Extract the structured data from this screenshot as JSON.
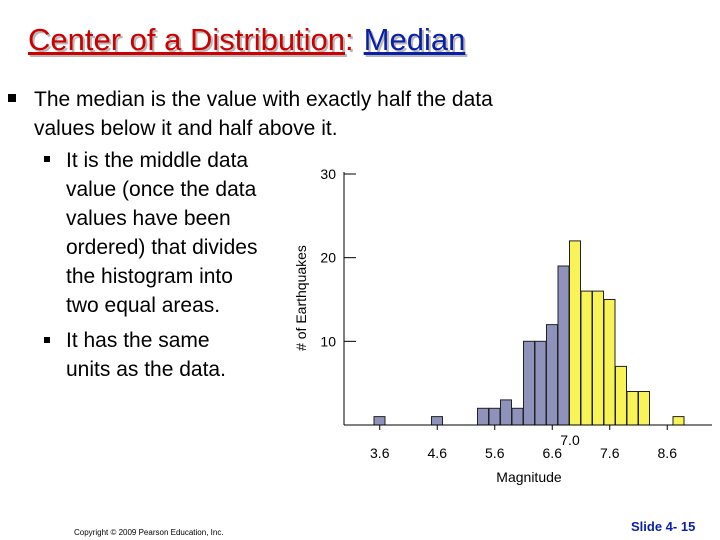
{
  "title": {
    "main": "Center of a Distribution",
    "separator": ":",
    "highlight": "Median"
  },
  "bullets": {
    "b1_line1": "The median is the value with exactly half the data",
    "b1_line2": "values below it and half above it.",
    "b2_lines": [
      "It is the middle data",
      "value (once the data",
      "values have been",
      "ordered) that divides",
      "the histogram into",
      "two equal areas."
    ],
    "b3_lines": [
      "It has the same",
      "units as the data."
    ]
  },
  "chart_data": {
    "type": "bar",
    "xlabel": "Magnitude",
    "ylabel": "# of Earthquakes",
    "x_ticks": [
      "3.6",
      "4.6",
      "5.6",
      "6.6",
      "7.6",
      "8.6"
    ],
    "median_label": "7.0",
    "median_value": 7.0,
    "y_ticks": [
      10,
      20,
      30
    ],
    "ylim": [
      0,
      30
    ],
    "bin_width": 0.2,
    "bins": [
      {
        "x": 3.6,
        "count": 1
      },
      {
        "x": 4.6,
        "count": 1
      },
      {
        "x": 5.4,
        "count": 2
      },
      {
        "x": 5.6,
        "count": 2
      },
      {
        "x": 5.8,
        "count": 3
      },
      {
        "x": 6.0,
        "count": 2
      },
      {
        "x": 6.2,
        "count": 10
      },
      {
        "x": 6.4,
        "count": 10
      },
      {
        "x": 6.6,
        "count": 12
      },
      {
        "x": 6.8,
        "count": 19
      },
      {
        "x": 7.0,
        "count": 22
      },
      {
        "x": 7.2,
        "count": 16
      },
      {
        "x": 7.4,
        "count": 16
      },
      {
        "x": 7.6,
        "count": 15
      },
      {
        "x": 7.8,
        "count": 7
      },
      {
        "x": 8.0,
        "count": 4
      },
      {
        "x": 8.2,
        "count": 4
      },
      {
        "x": 8.8,
        "count": 1
      }
    ],
    "colors": {
      "below_median": "#8f93bb",
      "above_median": "#f8f356"
    }
  },
  "footer": {
    "copyright": "Copyright © 2009 Pearson Education, Inc.",
    "slide": "Slide 4- 15"
  },
  "colors": {
    "title_red": "#cc0000",
    "title_blue": "#0a1fa8"
  }
}
